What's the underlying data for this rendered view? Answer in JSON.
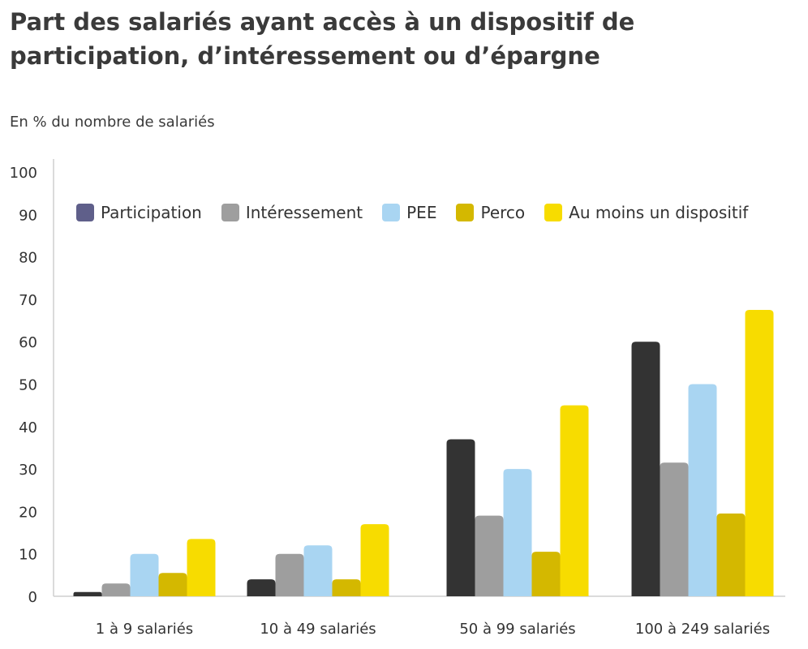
{
  "chart_data": {
    "type": "bar",
    "title": "Part des salariés ayant accès à un dispositif de participation, d’intéressement ou d’épargne",
    "subtitle": "En % du nombre de salariés",
    "xlabel": "",
    "ylabel": "",
    "ylim": [
      0,
      100
    ],
    "yticks": [
      0,
      10,
      20,
      30,
      40,
      50,
      60,
      70,
      80,
      90,
      100
    ],
    "categories": [
      "1 à 9 salariés",
      "10 à 49 salariés",
      "50 à 99 salariés",
      "100 à 249 salariés"
    ],
    "series": [
      {
        "name": "Participation",
        "color": "#333333",
        "values": [
          1,
          4,
          37,
          60
        ]
      },
      {
        "name": "Intéressement",
        "color": "#9e9e9e",
        "values": [
          3,
          10,
          19,
          31.5
        ]
      },
      {
        "name": "PEE",
        "color": "#a9d5f2",
        "values": [
          10,
          12,
          30,
          50
        ]
      },
      {
        "name": "Perco",
        "color": "#d4b800",
        "values": [
          5.5,
          4,
          10.5,
          19.5
        ]
      },
      {
        "name": "Au moins un dispositif",
        "color": "#f7dc00",
        "values": [
          13.5,
          17,
          45,
          67.5
        ]
      }
    ],
    "legend": {
      "position": "top",
      "swatch_colors": [
        "#5f5f8a",
        "#9e9e9e",
        "#a9d5f2",
        "#d4b800",
        "#f7dc00"
      ]
    },
    "grid": false
  }
}
